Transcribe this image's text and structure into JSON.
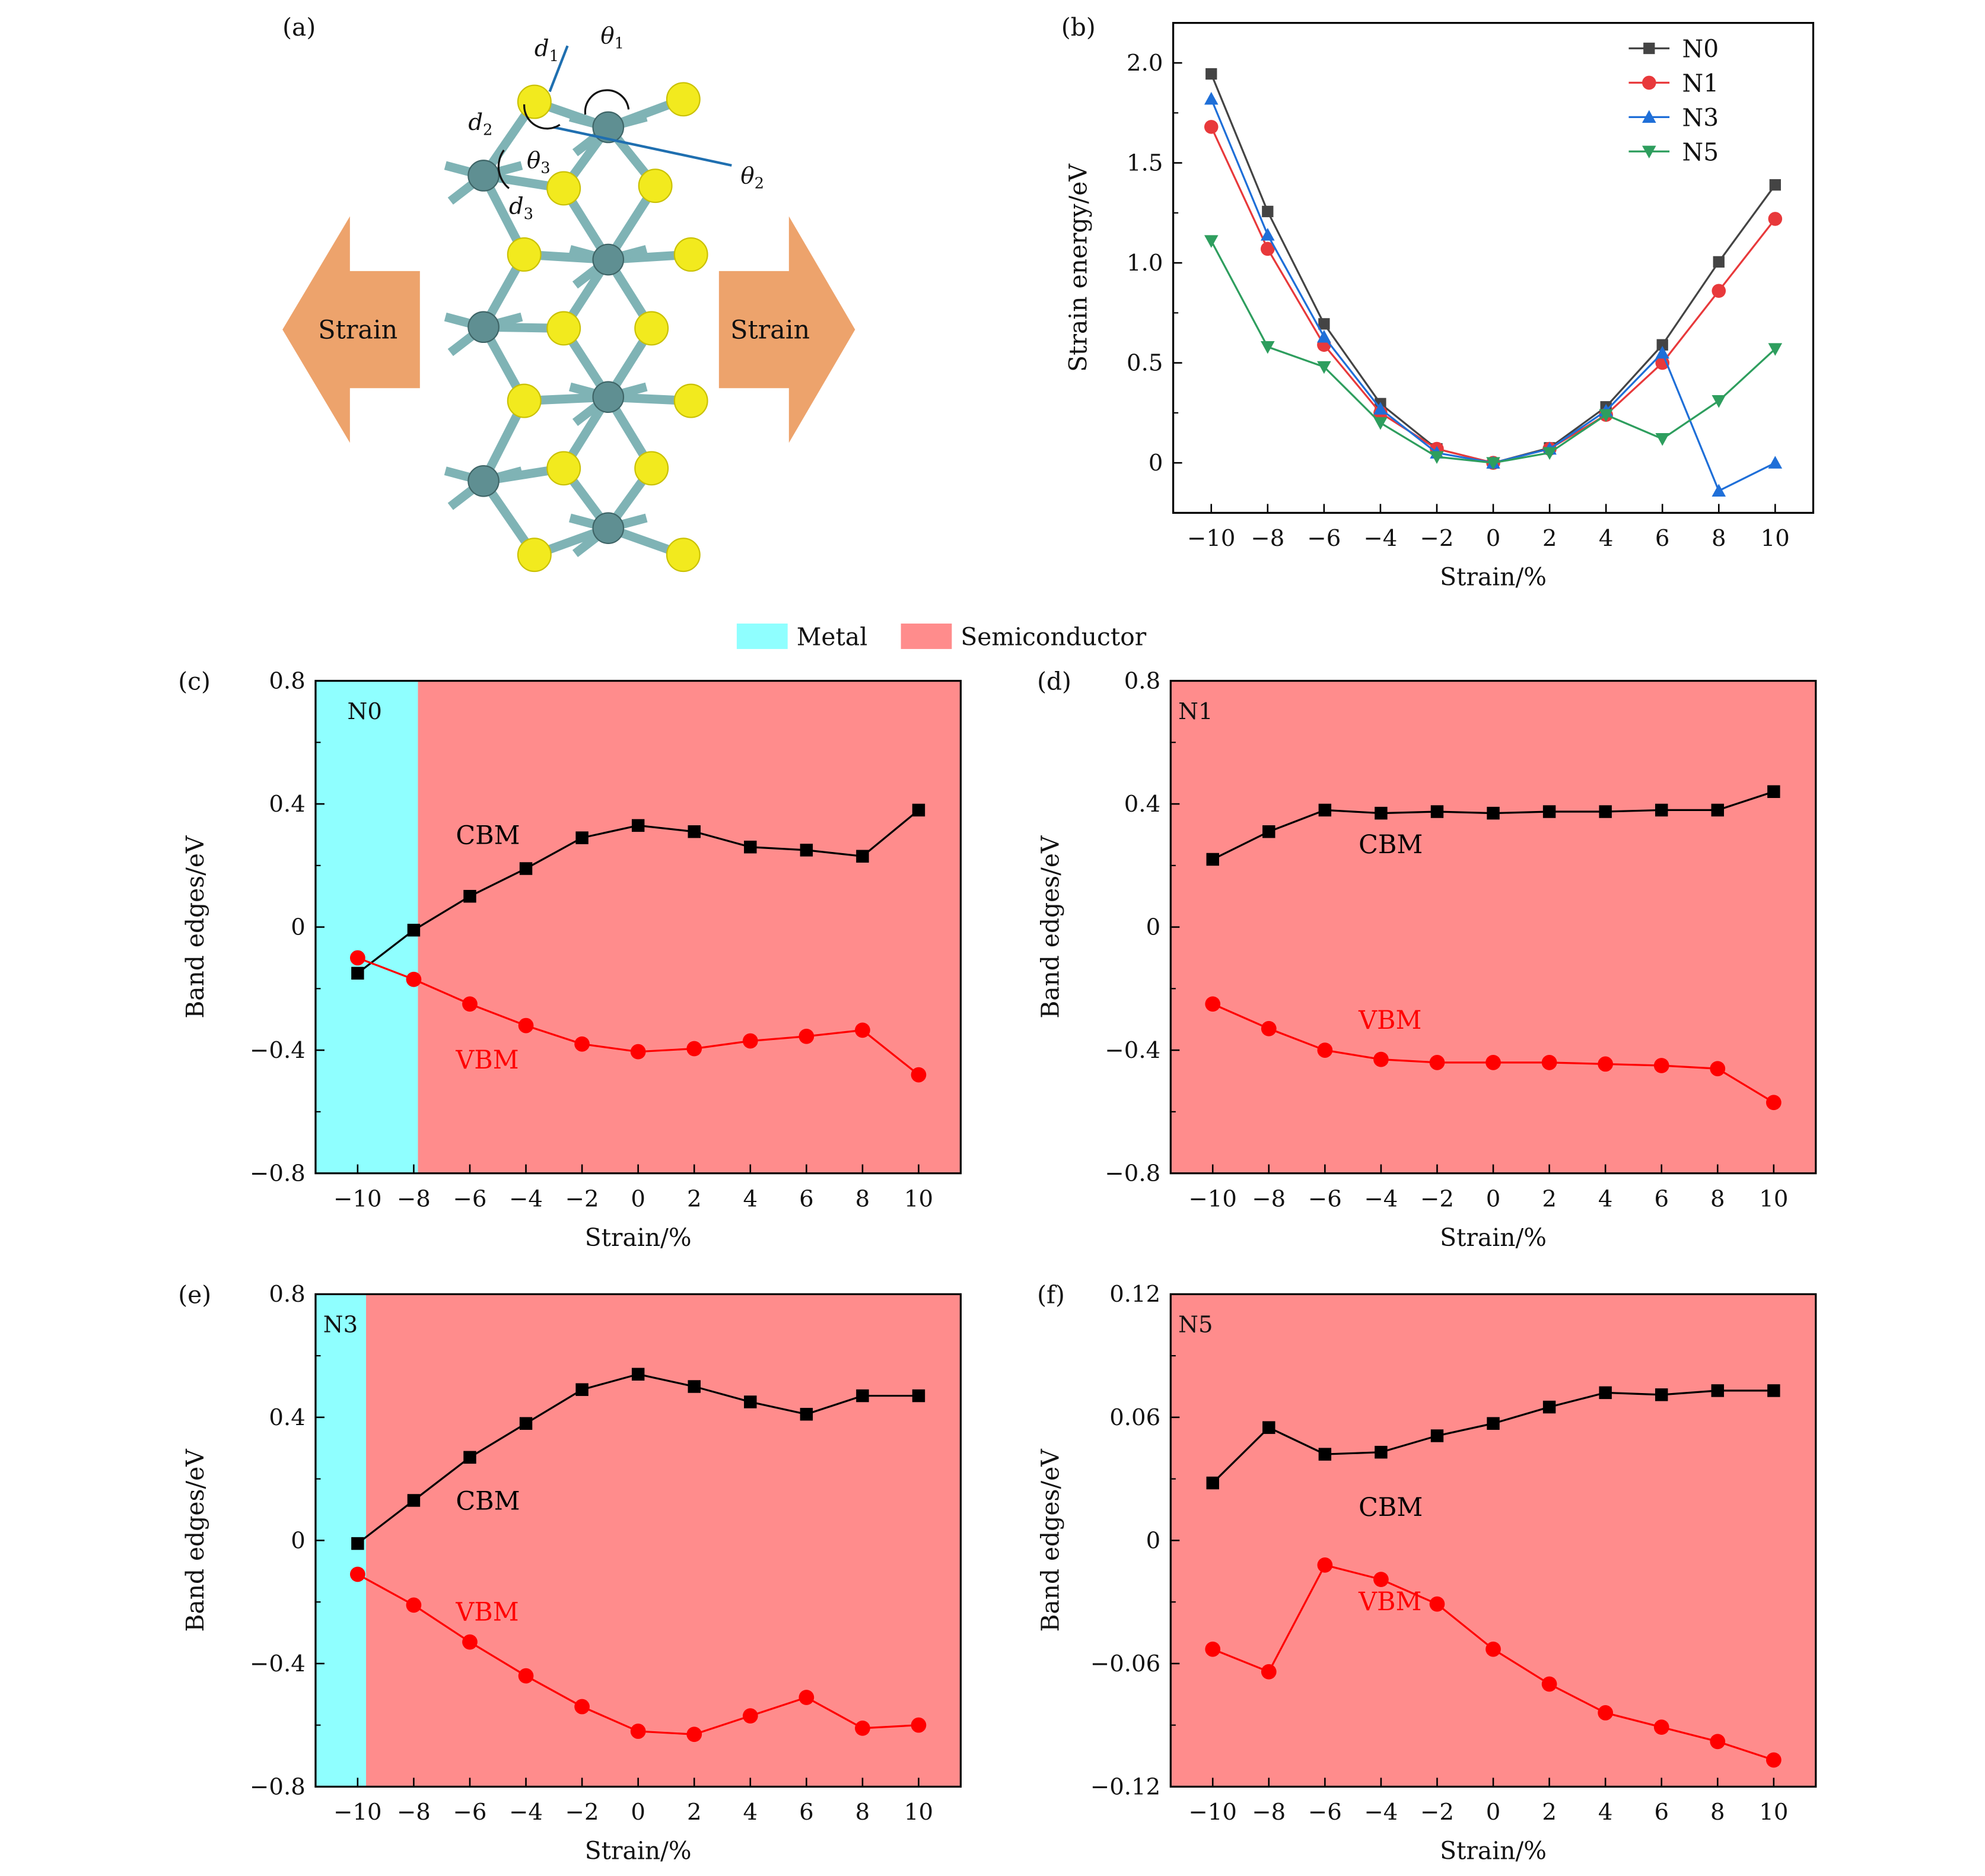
{
  "panel_labels": {
    "a": "(a)",
    "b": "(b)",
    "c": "(c)",
    "d": "(d)",
    "e": "(e)",
    "f": "(f)"
  },
  "structure": {
    "strain_left": "Strain",
    "strain_right": "Strain",
    "labels": {
      "d1": "d",
      "d1_sub": "1",
      "d2": "d",
      "d2_sub": "2",
      "d3": "d",
      "d3_sub": "3",
      "t1": "θ",
      "t1_sub": "1",
      "t2": "θ",
      "t2_sub": "2",
      "t3": "θ",
      "t3_sub": "3"
    },
    "colors": {
      "arrow": "#EDA36C",
      "sulfur": "#F2EA1E",
      "metal": "#5F8F92",
      "bond": "#7FB3B5",
      "vector": "#1F6FB0"
    }
  },
  "phase_legend": {
    "items": [
      {
        "label": "Metal",
        "color": "#8FFFFF"
      },
      {
        "label": "Semiconductor",
        "color": "#FF8C8C"
      }
    ]
  },
  "chart_data": [
    {
      "id": "b",
      "type": "line",
      "title": "",
      "xlabel": "Strain/%",
      "ylabel": "Strain energy/eV",
      "x": [
        -10,
        -8,
        -6,
        -4,
        -2,
        0,
        2,
        4,
        6,
        8,
        10
      ],
      "xlim": [
        -11.35,
        11.35
      ],
      "ylim": [
        -0.25,
        2.2
      ],
      "xticks": [
        "−10",
        "−8",
        "−6",
        "−4",
        "−2",
        "0",
        "2",
        "4",
        "6",
        "8",
        "10"
      ],
      "yticks": [
        {
          "v": 0,
          "t": "0"
        },
        {
          "v": 0.5,
          "t": "0.5"
        },
        {
          "v": 1.0,
          "t": "1.0"
        },
        {
          "v": 1.5,
          "t": "1.5"
        },
        {
          "v": 2.0,
          "t": "2.0"
        }
      ],
      "legend": "top-right",
      "grid": false,
      "series": [
        {
          "name": "N0",
          "marker": "square",
          "color": "#444444",
          "values": [
            1.945,
            1.257,
            0.695,
            0.296,
            0.07,
            0,
            0.075,
            0.28,
            0.59,
            1.005,
            1.39
          ]
        },
        {
          "name": "N1",
          "marker": "circle",
          "color": "#E8393B",
          "values": [
            1.68,
            1.07,
            0.59,
            0.25,
            0.07,
            0,
            0.07,
            0.24,
            0.5,
            0.86,
            1.22
          ]
        },
        {
          "name": "N3",
          "marker": "triangle-up",
          "color": "#1F6FD8",
          "values": [
            1.82,
            1.14,
            0.63,
            0.27,
            0.05,
            0,
            0.07,
            0.26,
            0.55,
            -0.14,
            0
          ]
        },
        {
          "name": "N5",
          "marker": "triangle-down",
          "color": "#2E9E5E",
          "values": [
            1.11,
            0.58,
            0.48,
            0.2,
            0.03,
            0,
            0.05,
            0.24,
            0.12,
            0.31,
            0.57
          ]
        }
      ]
    },
    {
      "id": "c",
      "type": "line",
      "system": "N0",
      "xlabel": "Strain/%",
      "ylabel": "Band edges/eV",
      "x": [
        -10,
        -8,
        -6,
        -4,
        -2,
        0,
        2,
        4,
        6,
        8,
        10
      ],
      "xlim": [
        -11.5,
        11.5
      ],
      "ylim": [
        -0.8,
        0.8
      ],
      "xticks": [
        "−10",
        "−8",
        "−6",
        "−4",
        "−2",
        "0",
        "2",
        "4",
        "6",
        "8",
        "10"
      ],
      "yticks": [
        {
          "v": -0.8,
          "t": "−0.8"
        },
        {
          "v": -0.4,
          "t": "−0.4"
        },
        {
          "v": 0,
          "t": "0"
        },
        {
          "v": 0.4,
          "t": "0.4"
        },
        {
          "v": 0.8,
          "t": "0.8"
        }
      ],
      "metal_until": -7.85,
      "series": [
        {
          "name": "CBM",
          "marker": "square",
          "color": "#000000",
          "values": [
            -0.15,
            -0.01,
            0.1,
            0.19,
            0.29,
            0.33,
            0.31,
            0.26,
            0.25,
            0.23,
            0.38
          ]
        },
        {
          "name": "VBM",
          "marker": "circle",
          "color": "#FF0000",
          "values": [
            -0.1,
            -0.17,
            -0.25,
            -0.32,
            -0.38,
            -0.405,
            -0.395,
            -0.37,
            -0.355,
            -0.335,
            -0.48
          ]
        }
      ]
    },
    {
      "id": "d",
      "type": "line",
      "system": "N1",
      "xlabel": "Strain/%",
      "ylabel": "Band edges/eV",
      "x": [
        -10,
        -8,
        -6,
        -4,
        -2,
        0,
        2,
        4,
        6,
        8,
        10
      ],
      "xlim": [
        -11.5,
        11.5
      ],
      "ylim": [
        -0.8,
        0.8
      ],
      "xticks": [
        "−10",
        "−8",
        "−6",
        "−4",
        "−2",
        "0",
        "2",
        "4",
        "6",
        "8",
        "10"
      ],
      "yticks": [
        {
          "v": -0.8,
          "t": "−0.8"
        },
        {
          "v": -0.4,
          "t": "−0.4"
        },
        {
          "v": 0,
          "t": "0"
        },
        {
          "v": 0.4,
          "t": "0.4"
        },
        {
          "v": 0.8,
          "t": "0.8"
        }
      ],
      "metal_until": null,
      "series": [
        {
          "name": "CBM",
          "marker": "square",
          "color": "#000000",
          "values": [
            0.22,
            0.31,
            0.38,
            0.37,
            0.375,
            0.37,
            0.375,
            0.375,
            0.38,
            0.38,
            0.44
          ]
        },
        {
          "name": "VBM",
          "marker": "circle",
          "color": "#FF0000",
          "values": [
            -0.25,
            -0.33,
            -0.4,
            -0.43,
            -0.44,
            -0.44,
            -0.44,
            -0.445,
            -0.45,
            -0.46,
            -0.57
          ]
        }
      ]
    },
    {
      "id": "e",
      "type": "line",
      "system": "N3",
      "xlabel": "Strain/%",
      "ylabel": "Band edges/eV",
      "x": [
        -10,
        -8,
        -6,
        -4,
        -2,
        0,
        2,
        4,
        6,
        8,
        10
      ],
      "xlim": [
        -11.5,
        11.5
      ],
      "ylim": [
        -0.8,
        0.8
      ],
      "xticks": [
        "−10",
        "−8",
        "−6",
        "−4",
        "−2",
        "0",
        "2",
        "4",
        "6",
        "8",
        "10"
      ],
      "yticks": [
        {
          "v": -0.8,
          "t": "−0.8"
        },
        {
          "v": -0.4,
          "t": "−0.4"
        },
        {
          "v": 0,
          "t": "0"
        },
        {
          "v": 0.4,
          "t": "0.4"
        },
        {
          "v": 0.8,
          "t": "0.8"
        }
      ],
      "metal_until": -9.7,
      "series": [
        {
          "name": "CBM",
          "marker": "square",
          "color": "#000000",
          "values": [
            -0.01,
            0.13,
            0.27,
            0.38,
            0.49,
            0.54,
            0.5,
            0.45,
            0.41,
            0.47,
            0.47
          ]
        },
        {
          "name": "VBM",
          "marker": "circle",
          "color": "#FF0000",
          "values": [
            -0.11,
            -0.21,
            -0.33,
            -0.44,
            -0.54,
            -0.62,
            -0.63,
            -0.57,
            -0.51,
            -0.61,
            -0.6
          ]
        }
      ]
    },
    {
      "id": "f",
      "type": "line",
      "system": "N5",
      "xlabel": "Strain/%",
      "ylabel": "Band edges/eV",
      "x": [
        -10,
        -8,
        -6,
        -4,
        -2,
        0,
        2,
        4,
        6,
        8,
        10
      ],
      "xlim": [
        -11.5,
        11.5
      ],
      "ylim": [
        -0.12,
        0.12
      ],
      "xticks": [
        "−10",
        "−8",
        "−6",
        "−4",
        "−2",
        "0",
        "2",
        "4",
        "6",
        "8",
        "10"
      ],
      "yticks": [
        {
          "v": -0.12,
          "t": "−0.12"
        },
        {
          "v": -0.06,
          "t": "−0.06"
        },
        {
          "v": 0,
          "t": "0"
        },
        {
          "v": 0.06,
          "t": "0.06"
        },
        {
          "v": 0.12,
          "t": "0.12"
        }
      ],
      "metal_until": null,
      "series": [
        {
          "name": "CBM",
          "marker": "square",
          "color": "#000000",
          "values": [
            0.028,
            0.055,
            0.042,
            0.043,
            0.051,
            0.057,
            0.065,
            0.072,
            0.071,
            0.073,
            0.073
          ]
        },
        {
          "name": "VBM",
          "marker": "circle",
          "color": "#FF0000",
          "values": [
            -0.053,
            -0.064,
            -0.012,
            -0.019,
            -0.031,
            -0.053,
            -0.07,
            -0.084,
            -0.091,
            -0.098,
            -0.107
          ]
        }
      ]
    }
  ]
}
